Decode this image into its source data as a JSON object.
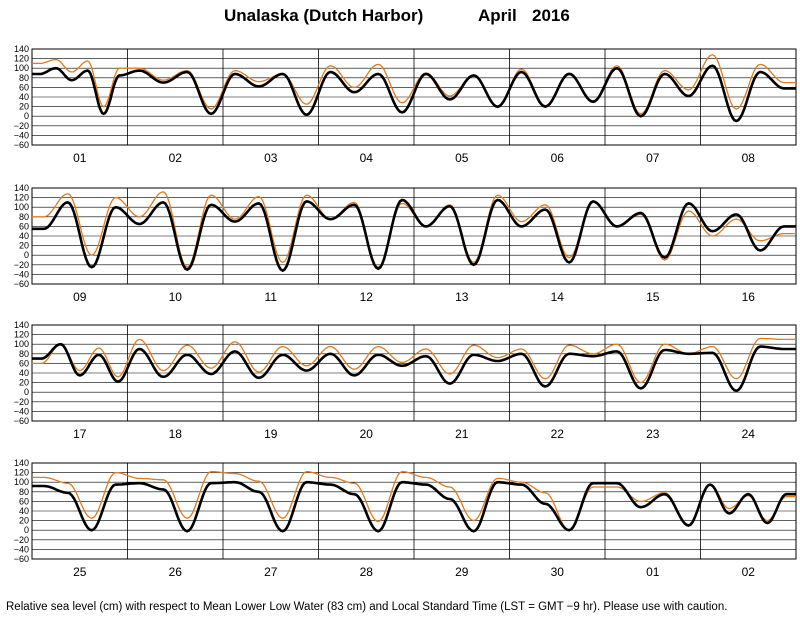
{
  "title": {
    "location": "Unalaska (Dutch Harbor)",
    "month": "April",
    "year": "2016"
  },
  "footnote": "Relative sea level (cm) with respect to Mean Lower Low Water (83 cm) and Local Standard Time (LST = GMT −9 hr). Please use with caution.",
  "colors": {
    "observed": "#000000",
    "predicted": "#e07b1f",
    "grid": "#000000"
  },
  "chart_data": {
    "type": "line",
    "y_ticks": [
      "140",
      "120",
      "100",
      "80",
      "60",
      "40",
      "20",
      "0",
      "−20",
      "−40",
      "−60"
    ],
    "ylim": [
      -60,
      140
    ],
    "grid": true,
    "series": [
      {
        "key": "observed",
        "values_by_day": [
          [
            88,
            100,
            75,
            95,
            5,
            85
          ],
          [
            95,
            70,
            92,
            5
          ],
          [
            88,
            62,
            88,
            3
          ],
          [
            92,
            50,
            88,
            8
          ],
          [
            88,
            35,
            85,
            20
          ],
          [
            92,
            20,
            88,
            30
          ],
          [
            100,
            0,
            88,
            42
          ],
          [
            105,
            -10,
            92,
            58
          ],
          [
            55,
            110,
            -25,
            100
          ],
          [
            65,
            110,
            -30,
            105
          ],
          [
            70,
            108,
            -32,
            112
          ],
          [
            75,
            105,
            -28,
            115
          ],
          [
            60,
            102,
            -20,
            115
          ],
          [
            60,
            95,
            -15,
            112
          ],
          [
            60,
            88,
            -5,
            108
          ],
          [
            50,
            85,
            10,
            60
          ],
          [
            70,
            100,
            35,
            78,
            22
          ],
          [
            90,
            32,
            78,
            38
          ],
          [
            85,
            30,
            78,
            45
          ],
          [
            80,
            35,
            78,
            55
          ],
          [
            75,
            18,
            78,
            65
          ],
          [
            80,
            12,
            80,
            75
          ],
          [
            85,
            8,
            88,
            80
          ],
          [
            82,
            3,
            95,
            90
          ],
          [
            92,
            78,
            0,
            95
          ],
          [
            98,
            85,
            -2,
            98
          ],
          [
            100,
            80,
            -2,
            100
          ],
          [
            95,
            75,
            -2,
            100
          ],
          [
            95,
            65,
            -2,
            100
          ],
          [
            95,
            55,
            0,
            98
          ],
          [
            98,
            48,
            75,
            10
          ],
          [
            95,
            35,
            75,
            15,
            75
          ]
        ]
      },
      {
        "key": "predicted",
        "values_by_day": [
          [
            110,
            118,
            92,
            115,
            20,
            100
          ],
          [
            100,
            75,
            95,
            15
          ],
          [
            95,
            72,
            88,
            25
          ],
          [
            105,
            60,
            108,
            28
          ],
          [
            90,
            42,
            86,
            18
          ],
          [
            98,
            22,
            90,
            32
          ],
          [
            105,
            5,
            95,
            55
          ],
          [
            128,
            15,
            108,
            70
          ],
          [
            80,
            128,
            0,
            120
          ],
          [
            80,
            132,
            -25,
            125
          ],
          [
            75,
            122,
            -15,
            125
          ],
          [
            75,
            110,
            -25,
            108
          ],
          [
            60,
            105,
            -15,
            125
          ],
          [
            70,
            105,
            -5,
            110
          ],
          [
            60,
            85,
            -10,
            92
          ],
          [
            40,
            75,
            30,
            45
          ],
          [
            60,
            100,
            45,
            92,
            32
          ],
          [
            110,
            45,
            98,
            50
          ],
          [
            105,
            42,
            95,
            55
          ],
          [
            95,
            48,
            95,
            62
          ],
          [
            90,
            38,
            98,
            72
          ],
          [
            90,
            28,
            98,
            80
          ],
          [
            100,
            20,
            100,
            80
          ],
          [
            95,
            28,
            112,
            110
          ],
          [
            110,
            98,
            25,
            120
          ],
          [
            108,
            105,
            25,
            122
          ],
          [
            118,
            102,
            25,
            122
          ],
          [
            110,
            98,
            18,
            122
          ],
          [
            110,
            90,
            20,
            108
          ],
          [
            100,
            78,
            0,
            90
          ],
          [
            90,
            60,
            78,
            8
          ],
          [
            95,
            45,
            72,
            20,
            70
          ]
        ]
      }
    ],
    "panels": [
      {
        "days": [
          "01",
          "02",
          "03",
          "04",
          "05",
          "06",
          "07",
          "08"
        ]
      },
      {
        "days": [
          "09",
          "10",
          "11",
          "12",
          "13",
          "14",
          "15",
          "16"
        ]
      },
      {
        "days": [
          "17",
          "18",
          "19",
          "20",
          "21",
          "22",
          "23",
          "24"
        ]
      },
      {
        "days": [
          "25",
          "26",
          "27",
          "28",
          "29",
          "30",
          "01",
          "02"
        ]
      }
    ]
  }
}
